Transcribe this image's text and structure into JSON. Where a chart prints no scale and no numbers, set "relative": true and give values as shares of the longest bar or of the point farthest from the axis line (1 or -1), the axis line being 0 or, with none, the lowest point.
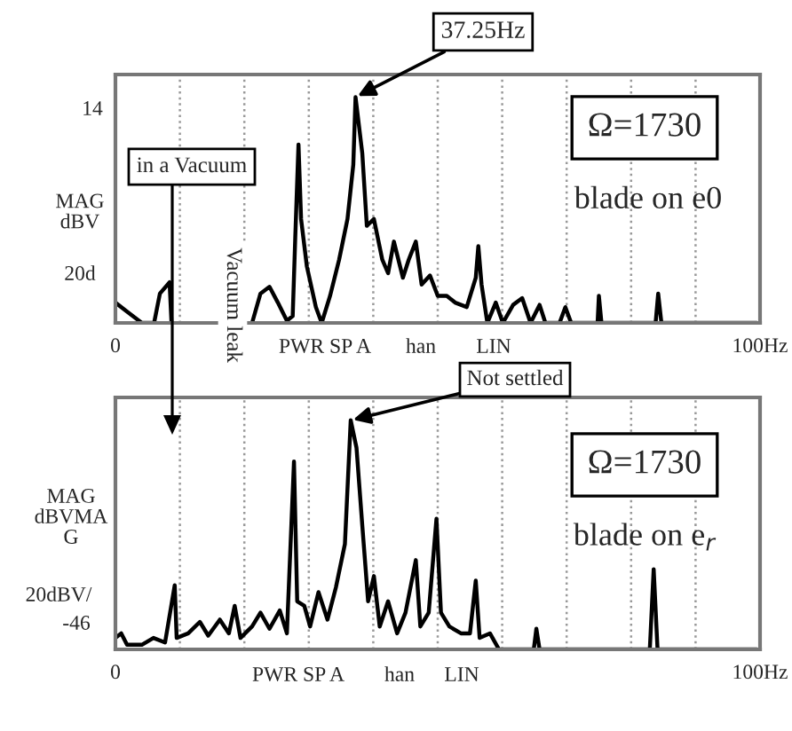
{
  "chart_data": [
    {
      "type": "line",
      "relative": true,
      "ylabel": "MAG\ndBV",
      "xlim": [
        0,
        100
      ],
      "xticks": [
        0,
        {
          "value": 10,
          "label": null
        },
        {
          "value": 20,
          "label": null
        },
        {
          "value": 30,
          "label": null
        },
        {
          "value": 40,
          "label": null
        },
        {
          "value": 50,
          "label": null
        },
        {
          "value": 60,
          "label": null
        },
        {
          "value": 70,
          "label": null
        },
        {
          "value": 80,
          "label": null
        },
        {
          "value": 90,
          "label": null
        },
        {
          "value": 100,
          "label": "100Hz"
        }
      ],
      "grid": "x",
      "marker": "none",
      "line_style": "solid",
      "x": [
        0,
        1.8,
        4.1,
        6.0,
        6.9,
        8.4,
        8.7,
        10,
        21.2,
        22.5,
        23.9,
        25.2,
        26.6,
        27.5,
        27.9,
        28.4,
        28.8,
        29.7,
        31.1,
        32.0,
        33.3,
        34.7,
        36.0,
        36.9,
        37.25,
        38.3,
        39.0,
        40.1,
        41.4,
        42.3,
        43.2,
        44.6,
        45.5,
        46.6,
        47.5,
        48.8,
        50.0,
        51.4,
        52.7,
        54.5,
        55.9,
        56.3,
        56.8,
        57.7,
        59.0,
        60.1,
        61.7,
        63.1,
        64.4,
        65.8,
        66.7,
        68.9,
        69.8,
        70.7,
        74.8,
        75.0,
        75.4,
        83.8,
        84.2,
        84.7,
        99.5
      ],
      "series": [
        {
          "color": "#000000",
          "values": [
            0.09,
            0.05,
            0,
            0,
            0.13,
            0.18,
            0,
            null,
            0,
            0.13,
            0.16,
            0.09,
            0.01,
            0.03,
            0.38,
            0.79,
            0.46,
            0.25,
            0.07,
            0,
            0.12,
            0.28,
            0.46,
            0.7,
            1,
            0.75,
            0.43,
            0.46,
            0.28,
            0.22,
            0.36,
            0.2,
            0.28,
            0.36,
            0.17,
            0.21,
            0.12,
            0.12,
            0.09,
            0.07,
            0.2,
            0.34,
            0.17,
            0,
            0.09,
            0,
            0.08,
            0.11,
            0,
            0.08,
            0,
            0,
            0.07,
            0,
            0,
            0.12,
            0,
            0,
            0.13,
            0,
            0
          ]
        }
      ],
      "annotations": [
        {
          "text": "37.25Hz",
          "x": 37.25,
          "y": 1
        },
        "14",
        "20d",
        "PWR SP A",
        "han",
        "LIN",
        "Ω=1730",
        "blade on e0",
        "in a Vacuum",
        "Vacuum leak"
      ]
    },
    {
      "type": "line",
      "relative": true,
      "ylabel": "MAG\ndBVMA\nG",
      "xlim": [
        0,
        100
      ],
      "xticks": [
        0,
        {
          "value": 10,
          "label": null
        },
        {
          "value": 20,
          "label": null
        },
        {
          "value": 30,
          "label": null
        },
        {
          "value": 40,
          "label": null
        },
        {
          "value": 50,
          "label": null
        },
        {
          "value": 60,
          "label": null
        },
        {
          "value": 70,
          "label": null
        },
        {
          "value": 80,
          "label": null
        },
        {
          "value": 90,
          "label": null
        },
        {
          "value": 100,
          "label": "100Hz"
        }
      ],
      "grid": "x",
      "marker": "none",
      "line_style": "solid",
      "x": [
        0,
        0.9,
        1.8,
        4.1,
        5.9,
        7.7,
        9.2,
        9.5,
        11.3,
        13.1,
        14.4,
        16.2,
        17.6,
        18.5,
        19.4,
        21.2,
        22.5,
        23.9,
        25.5,
        26.6,
        27.7,
        28.2,
        29.3,
        30.2,
        31.5,
        32.9,
        34.2,
        35.6,
        36.5,
        37.4,
        38.3,
        39.2,
        40.1,
        41.0,
        42.3,
        43.7,
        45.0,
        46.6,
        47.3,
        48.6,
        49.8,
        50.5,
        51.8,
        53.6,
        55.0,
        55.9,
        56.5,
        58.1,
        59.5,
        64.9,
        65.3,
        65.8,
        82.9,
        83.5,
        84.1,
        99.5
      ],
      "series": [
        {
          "color": "#000000",
          "values": [
            0.05,
            0.07,
            0.02,
            0.02,
            0.05,
            0.03,
            0.28,
            0.05,
            0.07,
            0.12,
            0.06,
            0.13,
            0.07,
            0.19,
            0.05,
            0.1,
            0.16,
            0.09,
            0.17,
            0.07,
            0.82,
            0.21,
            0.19,
            0.1,
            0.25,
            0.13,
            0.27,
            0.46,
            1,
            0.88,
            0.54,
            0.21,
            0.32,
            0.1,
            0.21,
            0.07,
            0.16,
            0.39,
            0.1,
            0.16,
            0.57,
            0.16,
            0.1,
            0.07,
            0.07,
            0.3,
            0.05,
            0.07,
            0,
            0,
            0.09,
            0,
            0,
            0.35,
            0,
            0
          ]
        }
      ],
      "annotations": [
        {
          "text": "Not settled",
          "x": 36.5,
          "y": 1
        },
        "20dBV/",
        "-46",
        "PWR SP A",
        "han",
        "LIN",
        "Ω=1730",
        "blade on e$_{r}$"
      ]
    }
  ]
}
